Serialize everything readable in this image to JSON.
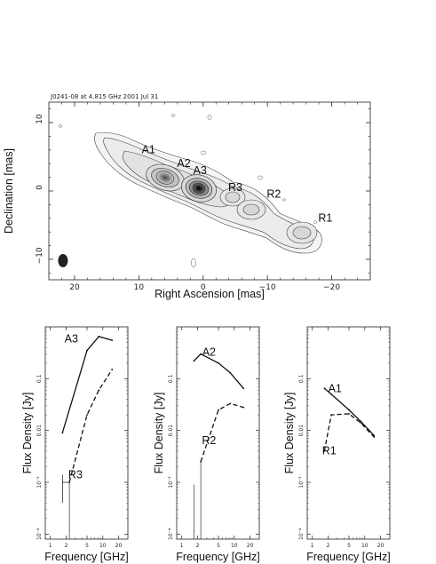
{
  "map": {
    "title": "J0241-08 at 4.815 GHz 2001 Jul 31",
    "xlabel": "Right Ascension [mas]",
    "ylabel": "Declination [mas]",
    "xticks": [
      "20",
      "10",
      "0",
      "−10",
      "−20"
    ],
    "yticks": [
      "10",
      "0",
      "−10"
    ],
    "components": [
      {
        "label": "A1",
        "ra": 8.5,
        "dec": 5.5
      },
      {
        "label": "A2",
        "ra": 3.0,
        "dec": 3.5
      },
      {
        "label": "A3",
        "ra": 0.5,
        "dec": 2.5
      },
      {
        "label": "R3",
        "ra": -5.0,
        "dec": 0.0
      },
      {
        "label": "R2",
        "ra": -11.0,
        "dec": -1.0
      },
      {
        "label": "R1",
        "ra": -19.0,
        "dec": -4.5
      }
    ]
  },
  "chart_data": [
    {
      "type": "line",
      "xlabel": "Frequency [GHz]",
      "ylabel": "Flux Density [Jy]",
      "xscale": "log",
      "yscale": "log",
      "xlim": [
        0.8,
        30
      ],
      "ylim": [
        8e-05,
        1
      ],
      "xticks": [
        "1",
        "2",
        "5",
        "10",
        "20"
      ],
      "yticks": [
        "0.1",
        "0.01",
        "10⁻³",
        "10⁻⁴"
      ],
      "series": [
        {
          "name": "A3",
          "style": "solid",
          "x": [
            1.7,
            5.0,
            8.4,
            15.0
          ],
          "y": [
            0.009,
            0.35,
            0.65,
            0.55
          ]
        },
        {
          "name": "R3",
          "style": "dashed",
          "x": [
            2.3,
            5.0,
            8.4,
            15.0
          ],
          "y": [
            0.001,
            0.02,
            0.06,
            0.15
          ]
        }
      ]
    },
    {
      "type": "line",
      "xlabel": "Frequency [GHz]",
      "ylabel": "Flux Density [Jy]",
      "xscale": "log",
      "yscale": "log",
      "xlim": [
        0.8,
        30
      ],
      "ylim": [
        8e-05,
        1
      ],
      "xticks": [
        "1",
        "2",
        "5",
        "10",
        "20"
      ],
      "yticks": [
        "0.1",
        "0.01",
        "10⁻³",
        "10⁻⁴"
      ],
      "series": [
        {
          "name": "A2",
          "style": "solid",
          "x": [
            1.7,
            2.3,
            5.0,
            8.4,
            15.0
          ],
          "y": [
            0.22,
            0.3,
            0.2,
            0.13,
            0.065
          ]
        },
        {
          "name": "R2",
          "style": "dashed",
          "x": [
            2.3,
            5.0,
            8.4,
            15.0
          ],
          "y": [
            0.0025,
            0.025,
            0.033,
            0.028
          ]
        }
      ]
    },
    {
      "type": "line",
      "xlabel": "Frequency [GHz]",
      "ylabel": "Flux Density [Jy]",
      "xscale": "log",
      "yscale": "log",
      "xlim": [
        0.8,
        30
      ],
      "ylim": [
        8e-05,
        1
      ],
      "xticks": [
        "1",
        "2",
        "5",
        "10",
        "20"
      ],
      "yticks": [
        "0.1",
        "0.01",
        "10⁻³",
        "10⁻⁴"
      ],
      "series": [
        {
          "name": "A1",
          "style": "solid",
          "x": [
            1.7,
            2.3,
            5.0,
            8.4,
            15.0
          ],
          "y": [
            0.065,
            0.05,
            0.025,
            0.015,
            0.008
          ]
        },
        {
          "name": "R1",
          "style": "dashed",
          "x": [
            1.7,
            2.3,
            5.0,
            8.4,
            15.0
          ],
          "y": [
            0.004,
            0.02,
            0.021,
            0.014,
            0.0075
          ]
        }
      ]
    }
  ]
}
